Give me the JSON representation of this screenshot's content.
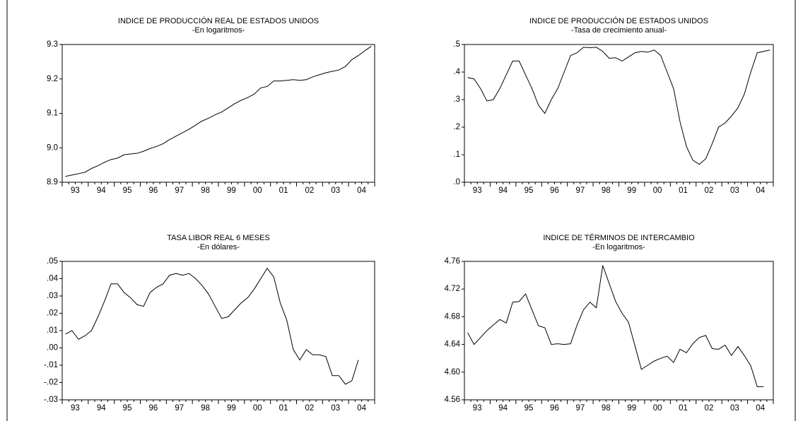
{
  "chart_data": [
    {
      "type": "line",
      "title": "INDICE DE PRODUCCIÓN REAL DE ESTADOS UNIDOS",
      "subtitle": "-En logaritmos-",
      "categories": [
        "93",
        null,
        null,
        null,
        "94",
        null,
        null,
        null,
        "95",
        null,
        null,
        null,
        "96",
        null,
        null,
        null,
        "97",
        null,
        null,
        null,
        "98",
        null,
        null,
        null,
        "99",
        null,
        null,
        null,
        "00",
        null,
        null,
        null,
        "01",
        null,
        null,
        null,
        "02",
        null,
        null,
        null,
        "03",
        null,
        null,
        null,
        "04",
        null,
        null,
        null
      ],
      "values": [
        8.917,
        8.921,
        8.925,
        8.929,
        8.94,
        8.948,
        8.958,
        8.966,
        8.97,
        8.98,
        8.982,
        8.984,
        8.99,
        8.998,
        9.004,
        9.012,
        9.024,
        9.034,
        9.044,
        9.054,
        9.066,
        9.078,
        9.086,
        9.096,
        9.104,
        9.116,
        9.128,
        9.138,
        9.146,
        9.156,
        9.174,
        9.178,
        9.194,
        9.194,
        9.196,
        9.198,
        9.196,
        9.198,
        9.206,
        9.212,
        9.218,
        9.222,
        9.226,
        9.236,
        9.256,
        9.268,
        9.282,
        9.295
      ],
      "color": "#000000",
      "ylim": [
        8.9,
        9.3
      ],
      "yticks": [
        8.9,
        {
          "value": 9,
          "label": "9.0"
        },
        9.1,
        9.2,
        9.3
      ]
    },
    {
      "type": "line",
      "title": "INDICE DE PRODUCCIÓN DE ESTADOS UNIDOS",
      "subtitle": "-Tasa de crecimiento anual-",
      "categories": [
        "93",
        null,
        null,
        null,
        "94",
        null,
        null,
        null,
        "95",
        null,
        null,
        null,
        "96",
        null,
        null,
        null,
        "97",
        null,
        null,
        null,
        "98",
        null,
        null,
        null,
        "99",
        null,
        null,
        null,
        "00",
        null,
        null,
        null,
        "01",
        null,
        null,
        null,
        "02",
        null,
        null,
        null,
        "03",
        null,
        null,
        null,
        "04",
        null,
        null,
        null
      ],
      "values": [
        0.38,
        0.375,
        0.34,
        0.295,
        0.3,
        0.34,
        0.39,
        0.44,
        0.44,
        0.39,
        0.34,
        0.28,
        0.25,
        0.3,
        0.34,
        0.4,
        0.46,
        0.47,
        0.49,
        0.488,
        0.49,
        0.475,
        0.45,
        0.452,
        0.44,
        0.455,
        0.47,
        0.475,
        0.472,
        0.48,
        0.46,
        0.4,
        0.34,
        0.22,
        0.13,
        0.08,
        0.065,
        0.085,
        0.14,
        0.2,
        0.215,
        0.24,
        0.27,
        0.32,
        0.4,
        0.47,
        0.475,
        0.48
      ],
      "color": "#000000",
      "ylim": [
        0,
        0.5
      ],
      "yticks": [
        {
          "value": 0,
          "label": ".0"
        },
        {
          "value": 0.1,
          "label": ".1"
        },
        {
          "value": 0.2,
          "label": ".2"
        },
        {
          "value": 0.3,
          "label": ".3"
        },
        {
          "value": 0.4,
          "label": ".4"
        },
        {
          "value": 0.5,
          "label": ".5"
        }
      ]
    },
    {
      "type": "line",
      "title": "TASA LIBOR REAL 6 MESES",
      "subtitle": "-En dólares-",
      "categories": [
        "93",
        null,
        null,
        null,
        "94",
        null,
        null,
        null,
        "95",
        null,
        null,
        null,
        "96",
        null,
        null,
        null,
        "97",
        null,
        null,
        null,
        "98",
        null,
        null,
        null,
        "99",
        null,
        null,
        null,
        "00",
        null,
        null,
        null,
        "01",
        null,
        null,
        null,
        "02",
        null,
        null,
        null,
        "03",
        null,
        null,
        null,
        "04",
        null,
        null,
        null
      ],
      "values": [
        0.008,
        0.01,
        0.005,
        0.007,
        0.01,
        0.018,
        0.027,
        0.037,
        0.037,
        0.032,
        0.029,
        0.025,
        0.024,
        0.032,
        0.035,
        0.037,
        0.042,
        0.043,
        0.042,
        0.043,
        0.04,
        0.036,
        0.031,
        0.024,
        0.017,
        0.018,
        0.022,
        0.026,
        0.029,
        0.034,
        0.04,
        0.046,
        0.041,
        0.026,
        0.016,
        -0.001,
        -0.007,
        -0.001,
        -0.004,
        -0.004,
        -0.005,
        -0.016,
        -0.016,
        -0.021,
        -0.019,
        -0.007,
        null,
        null
      ],
      "color": "#000000",
      "ylim": [
        -0.03,
        0.05
      ],
      "yticks": [
        {
          "value": -0.03,
          "label": "-.03"
        },
        {
          "value": -0.02,
          "label": "-.02"
        },
        {
          "value": -0.01,
          "label": "-.01"
        },
        {
          "value": 0,
          "label": ".00"
        },
        {
          "value": 0.01,
          "label": ".01"
        },
        {
          "value": 0.02,
          "label": ".02"
        },
        {
          "value": 0.03,
          "label": ".03"
        },
        {
          "value": 0.04,
          "label": ".04"
        },
        {
          "value": 0.05,
          "label": ".05"
        }
      ]
    },
    {
      "type": "line",
      "title": "INDICE DE TÉRMINOS DE INTERCAMBIO",
      "subtitle": "-En logaritmos-",
      "categories": [
        "93",
        null,
        null,
        null,
        "94",
        null,
        null,
        null,
        "95",
        null,
        null,
        null,
        "96",
        null,
        null,
        null,
        "97",
        null,
        null,
        null,
        "98",
        null,
        null,
        null,
        "99",
        null,
        null,
        null,
        "00",
        null,
        null,
        null,
        "01",
        null,
        null,
        null,
        "02",
        null,
        null,
        null,
        "03",
        null,
        null,
        null,
        "04",
        null,
        null,
        null
      ],
      "values": [
        4.657,
        4.64,
        4.65,
        4.66,
        4.668,
        4.676,
        4.671,
        4.701,
        4.702,
        4.713,
        4.69,
        4.667,
        4.664,
        4.64,
        4.641,
        4.64,
        4.641,
        4.668,
        4.69,
        4.701,
        4.693,
        4.754,
        4.728,
        4.702,
        4.685,
        4.672,
        4.638,
        4.604,
        4.61,
        4.616,
        4.62,
        4.623,
        4.614,
        4.633,
        4.628,
        4.641,
        4.65,
        4.653,
        4.634,
        4.633,
        4.639,
        4.624,
        4.637,
        4.624,
        4.609,
        4.579,
        4.579,
        null
      ],
      "color": "#000000",
      "ylim": [
        4.56,
        4.76
      ],
      "yticks": [
        4.56,
        {
          "value": 4.6,
          "label": "4.60"
        },
        4.64,
        4.68,
        4.72,
        4.76
      ]
    }
  ]
}
